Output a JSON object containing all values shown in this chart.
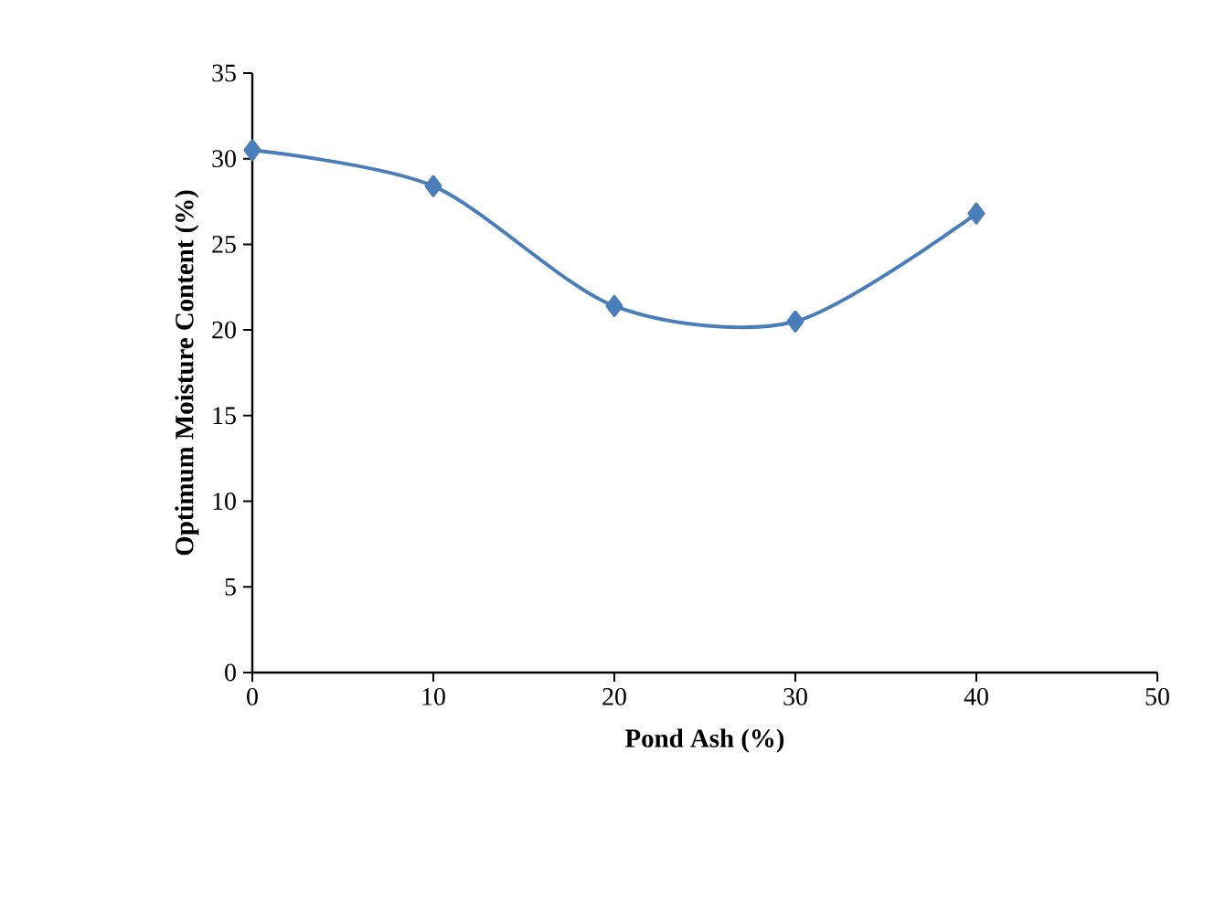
{
  "chart_data": {
    "type": "line",
    "xlabel": "Pond Ash (%)",
    "ylabel": "Optimum Moisture Content (%)",
    "x": [
      0,
      10,
      20,
      30,
      40
    ],
    "series": [
      {
        "color": "#4a7ebb",
        "values": [
          30.5,
          28.4,
          21.4,
          20.5,
          26.8
        ]
      }
    ],
    "xlim": [
      0,
      50
    ],
    "xticks": [
      0,
      10,
      20,
      30,
      40,
      50
    ],
    "ylim": [
      0,
      35
    ],
    "yticks": [
      0,
      5,
      10,
      15,
      20,
      25,
      30,
      35
    ],
    "marker": "diamond",
    "line_style": "solid"
  }
}
